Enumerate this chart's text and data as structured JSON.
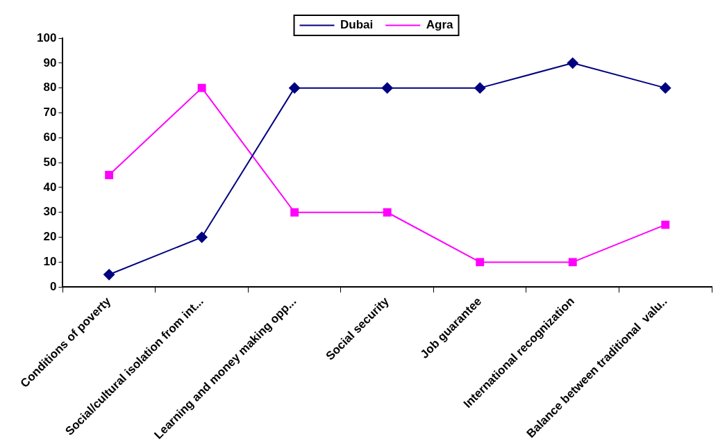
{
  "chart_data": {
    "type": "line",
    "categories": [
      "Conditions of poverty",
      "Social/cultural isolation from int...",
      "Learning and money making opp...",
      "Social security",
      "Job guarantee",
      "International recognization",
      "Balance between traditional  valu.."
    ],
    "series": [
      {
        "name": "Dubai",
        "color": "#000080",
        "marker": "diamond",
        "values": [
          5,
          20,
          80,
          80,
          80,
          90,
          80
        ]
      },
      {
        "name": "Agra",
        "color": "#ff00ff",
        "marker": "square",
        "values": [
          45,
          80,
          30,
          30,
          10,
          10,
          25
        ]
      }
    ],
    "ylim": [
      0,
      100
    ],
    "yticks": [
      0,
      10,
      20,
      30,
      40,
      50,
      60,
      70,
      80,
      90,
      100
    ],
    "grid": false,
    "legend": "top",
    "line_style": "solid"
  }
}
